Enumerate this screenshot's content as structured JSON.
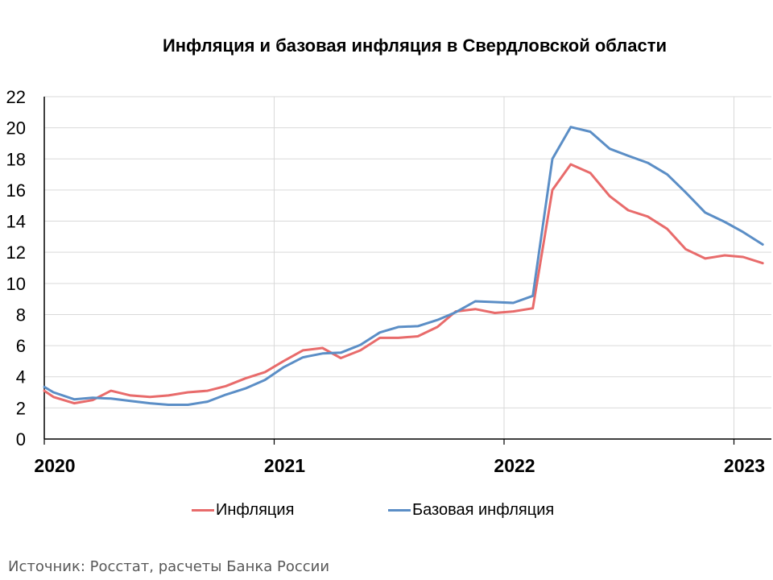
{
  "chart_data": {
    "type": "line",
    "title": "Инфляция и базовая инфляция в Свердловской области",
    "xlabel": "",
    "ylabel": "",
    "ylim": [
      0,
      22
    ],
    "yticks": [
      0,
      2,
      4,
      6,
      8,
      10,
      12,
      14,
      16,
      18,
      20,
      22
    ],
    "xticks": [
      "2020",
      "2021",
      "2022",
      "2023"
    ],
    "xlim": [
      2020.0,
      2023.17
    ],
    "grid": true,
    "legend_position": "bottom",
    "x": [
      2020.0,
      2020.083,
      2020.167,
      2020.25,
      2020.333,
      2020.417,
      2020.5,
      2020.583,
      2020.667,
      2020.75,
      2020.833,
      2020.917,
      2021.0,
      2021.083,
      2021.167,
      2021.25,
      2021.333,
      2021.417,
      2021.5,
      2021.583,
      2021.667,
      2021.75,
      2021.833,
      2021.917,
      2022.0,
      2022.083,
      2022.167,
      2022.25,
      2022.333,
      2022.417,
      2022.5,
      2022.583,
      2022.667,
      2022.75,
      2022.833,
      2022.917,
      2023.0,
      2023.083
    ],
    "series": [
      {
        "name": "Инфляция",
        "color": "#E86B6B",
        "x": [
          2020.0,
          2020.04,
          2020.13,
          2020.21,
          2020.29,
          2020.375,
          2020.46,
          2020.54,
          2020.625,
          2020.71,
          2020.79,
          2020.875,
          2020.96,
          2021.04,
          2021.125,
          2021.21,
          2021.29,
          2021.375,
          2021.46,
          2021.54,
          2021.625,
          2021.71,
          2021.79,
          2021.875,
          2021.96,
          2022.04,
          2022.125,
          2022.21,
          2022.29,
          2022.375,
          2022.46,
          2022.54,
          2022.625,
          2022.71,
          2022.79,
          2022.875,
          2022.96,
          2023.04,
          2023.125
        ],
        "values": [
          3.1,
          2.7,
          2.3,
          2.5,
          3.1,
          2.8,
          2.7,
          2.8,
          3.0,
          3.1,
          3.4,
          3.9,
          4.3,
          5.0,
          5.7,
          5.85,
          5.2,
          5.7,
          6.5,
          6.5,
          6.6,
          7.2,
          8.2,
          8.35,
          8.1,
          8.2,
          8.4,
          16.0,
          17.65,
          17.1,
          15.6,
          14.7,
          14.3,
          13.5,
          12.2,
          11.6,
          11.8,
          11.7,
          11.3
        ]
      },
      {
        "name": "Базовая инфляция",
        "color": "#5B8EC6",
        "x": [
          2020.0,
          2020.04,
          2020.13,
          2020.21,
          2020.29,
          2020.375,
          2020.46,
          2020.54,
          2020.625,
          2020.71,
          2020.79,
          2020.875,
          2020.96,
          2021.04,
          2021.125,
          2021.21,
          2021.29,
          2021.375,
          2021.46,
          2021.54,
          2021.625,
          2021.71,
          2021.79,
          2021.875,
          2021.96,
          2022.04,
          2022.125,
          2022.21,
          2022.29,
          2022.375,
          2022.46,
          2022.54,
          2022.625,
          2022.71,
          2022.79,
          2022.875,
          2022.96,
          2023.04,
          2023.125
        ],
        "values": [
          3.35,
          3.0,
          2.55,
          2.65,
          2.6,
          2.45,
          2.3,
          2.2,
          2.2,
          2.4,
          2.85,
          3.25,
          3.8,
          4.6,
          5.25,
          5.5,
          5.55,
          6.05,
          6.85,
          7.2,
          7.25,
          7.65,
          8.15,
          8.85,
          8.8,
          8.75,
          9.2,
          18.0,
          20.05,
          19.75,
          18.65,
          18.2,
          17.75,
          17.0,
          15.85,
          14.55,
          13.95,
          13.3,
          12.5
        ]
      }
    ]
  },
  "source_note": "Источник: Росстат, расчеты Банка России"
}
